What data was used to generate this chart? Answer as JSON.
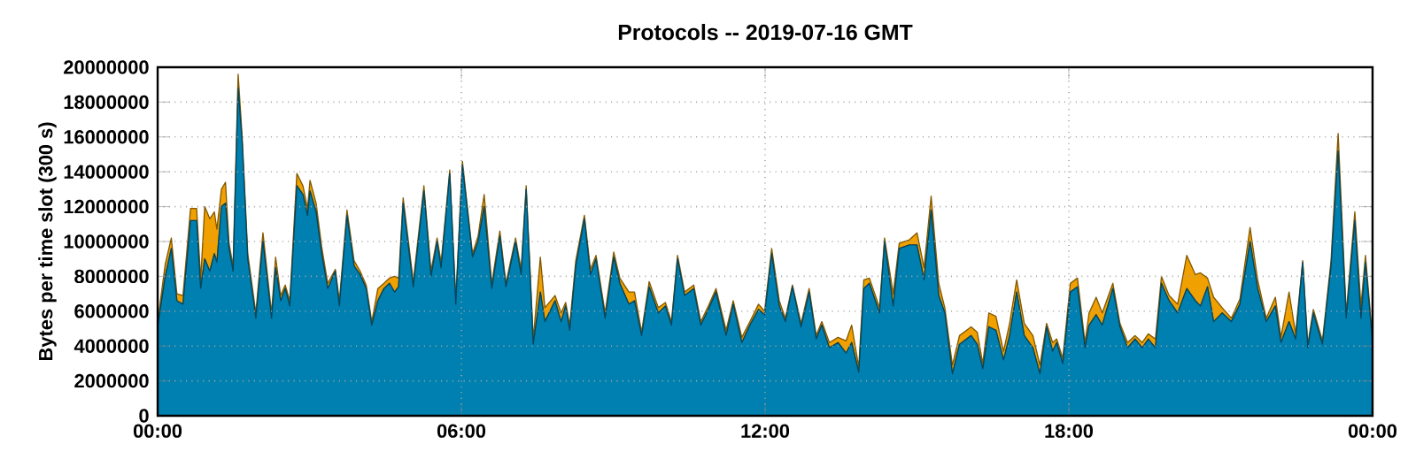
{
  "chart_data": {
    "type": "area",
    "title": "Protocols -- 2019-07-16 GMT",
    "ylabel": "Bytes per time slot (300 s)",
    "stacked": true,
    "grid": true,
    "xlim": [
      0,
      24
    ],
    "xticks": [
      {
        "value": 0,
        "label": "00:00"
      },
      {
        "value": 6,
        "label": "06:00"
      },
      {
        "value": 12,
        "label": "12:00"
      },
      {
        "value": 18,
        "label": "18:00"
      },
      {
        "value": 24,
        "label": "00:00"
      }
    ],
    "ylim": [
      0,
      20000000
    ],
    "yticks": [
      0,
      2000000,
      4000000,
      6000000,
      8000000,
      10000000,
      12000000,
      14000000,
      16000000,
      18000000,
      20000000
    ],
    "x": [
      0,
      0.15,
      0.27,
      0.38,
      0.5,
      0.65,
      0.77,
      0.85,
      0.93,
      1.03,
      1.12,
      1.17,
      1.26,
      1.34,
      1.41,
      1.49,
      1.59,
      1.67,
      1.78,
      1.94,
      2.08,
      2.25,
      2.33,
      2.43,
      2.52,
      2.61,
      2.75,
      2.87,
      2.96,
      3.01,
      3.13,
      3.24,
      3.36,
      3.51,
      3.59,
      3.74,
      3.88,
      4.0,
      4.12,
      4.23,
      4.35,
      4.47,
      4.58,
      4.68,
      4.76,
      4.85,
      5.05,
      5.26,
      5.4,
      5.52,
      5.6,
      5.77,
      5.89,
      6.02,
      6.22,
      6.33,
      6.45,
      6.6,
      6.76,
      6.88,
      7.07,
      7.18,
      7.28,
      7.42,
      7.56,
      7.65,
      7.85,
      7.97,
      8.06,
      8.14,
      8.26,
      8.43,
      8.55,
      8.66,
      8.84,
      9.01,
      9.13,
      9.31,
      9.42,
      9.56,
      9.71,
      9.89,
      10.03,
      10.15,
      10.27,
      10.41,
      10.59,
      10.73,
      10.88,
      11.03,
      11.23,
      11.37,
      11.54,
      11.7,
      11.87,
      11.99,
      12.13,
      12.28,
      12.4,
      12.54,
      12.71,
      12.87,
      13.01,
      13.12,
      13.27,
      13.44,
      13.6,
      13.71,
      13.85,
      13.95,
      14.06,
      14.26,
      14.36,
      14.53,
      14.65,
      14.85,
      15.0,
      15.14,
      15.28,
      15.43,
      15.55,
      15.7,
      15.84,
      16.07,
      16.19,
      16.3,
      16.42,
      16.56,
      16.71,
      16.83,
      16.97,
      17.12,
      17.29,
      17.43,
      17.56,
      17.68,
      17.76,
      17.88,
      18.03,
      18.17,
      18.32,
      18.4,
      18.54,
      18.66,
      18.87,
      19.01,
      19.16,
      19.31,
      19.45,
      19.57,
      19.71,
      19.83,
      19.98,
      20.15,
      20.33,
      20.5,
      20.6,
      20.74,
      20.86,
      21.03,
      21.21,
      21.38,
      21.58,
      21.73,
      21.9,
      22.08,
      22.19,
      22.35,
      22.48,
      22.62,
      22.72,
      22.83,
      23.01,
      23.18,
      23.32,
      23.48,
      23.65,
      23.77,
      23.86,
      24
    ],
    "series": [
      {
        "color": "#0080b0",
        "values": [
          5100000,
          8000000,
          9600000,
          6600000,
          6400000,
          11200000,
          11200000,
          7300000,
          9000000,
          8300000,
          9300000,
          8800000,
          12000000,
          12200000,
          9600000,
          8300000,
          18800000,
          15700000,
          9000000,
          5600000,
          10000000,
          5600000,
          8500000,
          6600000,
          7300000,
          6300000,
          13200000,
          12700000,
          11500000,
          12900000,
          11700000,
          9300000,
          7300000,
          8300000,
          6300000,
          11500000,
          8600000,
          8100000,
          7300000,
          5200000,
          6600000,
          7300000,
          7600000,
          7100000,
          7400000,
          12200000,
          7400000,
          12900000,
          8000000,
          10000000,
          8500000,
          13900000,
          6400000,
          14400000,
          9100000,
          10000000,
          12000000,
          7300000,
          10300000,
          7400000,
          10000000,
          8100000,
          13000000,
          4100000,
          7100000,
          5400000,
          6600000,
          5400000,
          6300000,
          4900000,
          8600000,
          11300000,
          8100000,
          9000000,
          5600000,
          9100000,
          7600000,
          6400000,
          6600000,
          4600000,
          7400000,
          5900000,
          6300000,
          5200000,
          9000000,
          6900000,
          7300000,
          5200000,
          6100000,
          7100000,
          4600000,
          6400000,
          4200000,
          5200000,
          6100000,
          5800000,
          9300000,
          6300000,
          5400000,
          7400000,
          5100000,
          7100000,
          4400000,
          5200000,
          3900000,
          4200000,
          3600000,
          4200000,
          2500000,
          7300000,
          7600000,
          5900000,
          10000000,
          6300000,
          9600000,
          9800000,
          9800000,
          7800000,
          11800000,
          6900000,
          5900000,
          2400000,
          4100000,
          4600000,
          4100000,
          2700000,
          5100000,
          4900000,
          3200000,
          4600000,
          7100000,
          4600000,
          3900000,
          2400000,
          5100000,
          3700000,
          4200000,
          3000000,
          7100000,
          7400000,
          3900000,
          5200000,
          5800000,
          5200000,
          7300000,
          5100000,
          3900000,
          4400000,
          3900000,
          4400000,
          3900000,
          7600000,
          6600000,
          5900000,
          7300000,
          6600000,
          6300000,
          7400000,
          5400000,
          5900000,
          5400000,
          6400000,
          10000000,
          7300000,
          5400000,
          6300000,
          4200000,
          5400000,
          4400000,
          8800000,
          3900000,
          5900000,
          4100000,
          8600000,
          15200000,
          5600000,
          11200000,
          5600000,
          8800000,
          4200000
        ]
      },
      {
        "color": "#f0a000",
        "values": [
          300000,
          700000,
          600000,
          400000,
          500000,
          700000,
          700000,
          500000,
          3000000,
          3000000,
          2400000,
          1900000,
          1000000,
          1200000,
          300000,
          300000,
          800000,
          300000,
          300000,
          300000,
          500000,
          300000,
          600000,
          300000,
          200000,
          300000,
          700000,
          500000,
          400000,
          600000,
          500000,
          400000,
          300000,
          100000,
          300000,
          300000,
          300000,
          200000,
          200000,
          200000,
          700000,
          300000,
          300000,
          900000,
          500000,
          300000,
          300000,
          300000,
          300000,
          200000,
          300000,
          200000,
          300000,
          200000,
          200000,
          300000,
          700000,
          300000,
          300000,
          200000,
          200000,
          300000,
          200000,
          300000,
          2000000,
          800000,
          300000,
          500000,
          200000,
          300000,
          300000,
          200000,
          300000,
          200000,
          300000,
          300000,
          300000,
          700000,
          500000,
          200000,
          300000,
          300000,
          200000,
          200000,
          200000,
          200000,
          200000,
          200000,
          200000,
          200000,
          300000,
          200000,
          300000,
          200000,
          300000,
          200000,
          300000,
          300000,
          200000,
          100000,
          200000,
          200000,
          200000,
          200000,
          300000,
          300000,
          700000,
          1000000,
          300000,
          500000,
          300000,
          300000,
          200000,
          700000,
          300000,
          300000,
          700000,
          700000,
          800000,
          700000,
          300000,
          500000,
          500000,
          500000,
          700000,
          300000,
          800000,
          800000,
          500000,
          700000,
          700000,
          700000,
          700000,
          500000,
          200000,
          500000,
          200000,
          300000,
          500000,
          500000,
          300000,
          700000,
          1000000,
          700000,
          300000,
          200000,
          300000,
          200000,
          300000,
          300000,
          500000,
          400000,
          300000,
          500000,
          1900000,
          1500000,
          1900000,
          500000,
          1400000,
          300000,
          200000,
          300000,
          800000,
          500000,
          200000,
          500000,
          300000,
          1700000,
          300000,
          100000,
          200000,
          200000,
          200000,
          300000,
          1000000,
          300000,
          500000,
          700000,
          400000,
          200000
        ]
      }
    ]
  }
}
